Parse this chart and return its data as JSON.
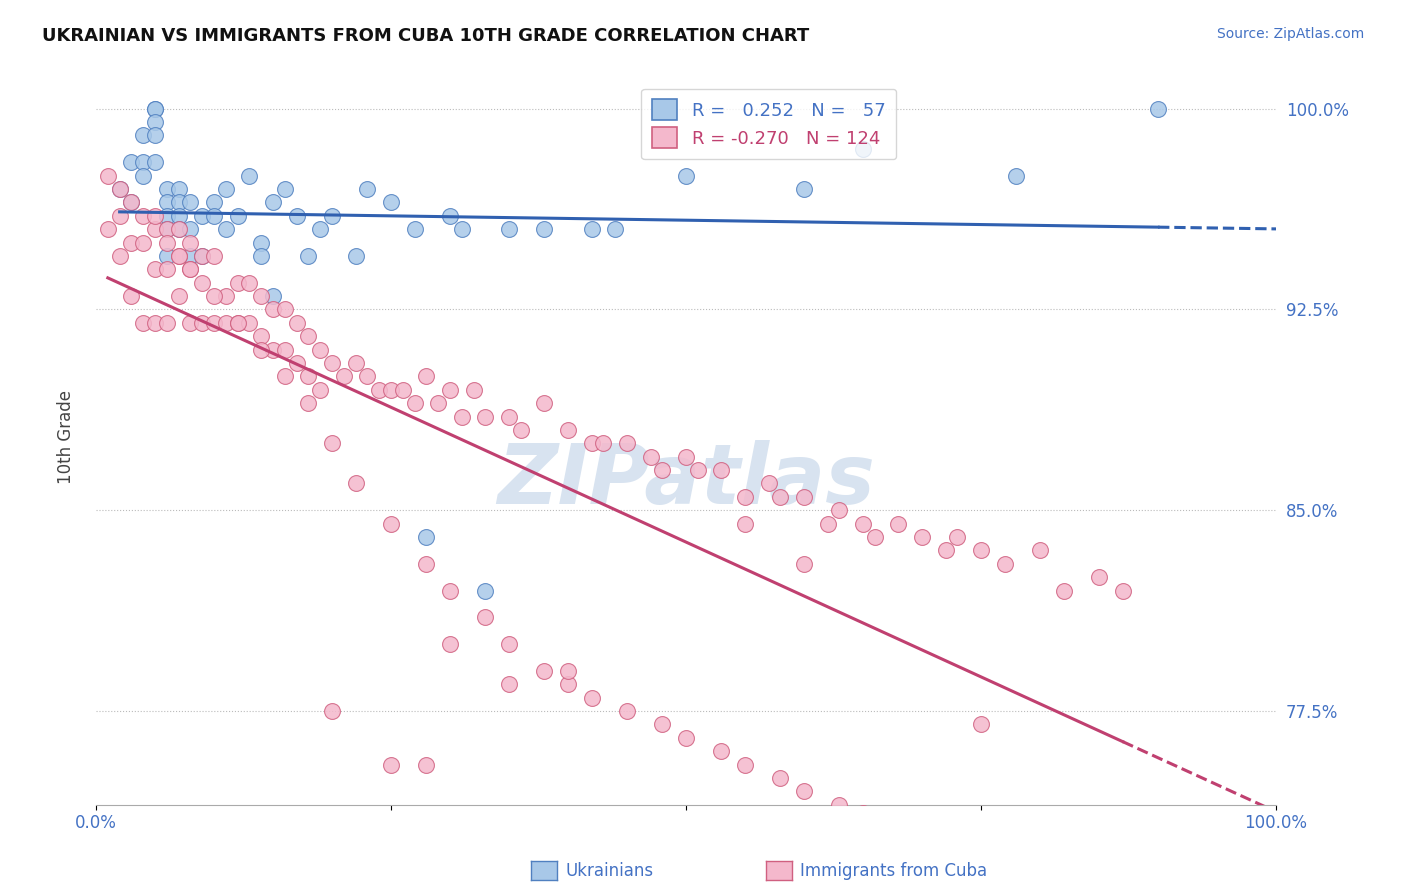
{
  "title": "UKRAINIAN VS IMMIGRANTS FROM CUBA 10TH GRADE CORRELATION CHART",
  "source": "Source: ZipAtlas.com",
  "ylabel": "10th Grade",
  "xlim": [
    0.0,
    1.0
  ],
  "ylim": [
    0.74,
    1.015
  ],
  "yticks": [
    0.775,
    0.85,
    0.925,
    1.0
  ],
  "ytick_labels": [
    "77.5%",
    "85.0%",
    "92.5%",
    "100.0%"
  ],
  "legend_blue_r": "0.252",
  "legend_blue_n": "57",
  "legend_pink_r": "-0.270",
  "legend_pink_n": "124",
  "blue_face": "#a8c8e8",
  "pink_face": "#f4b8cc",
  "blue_edge": "#5080c0",
  "pink_edge": "#d06080",
  "blue_line": "#3060b0",
  "pink_line": "#c04070",
  "watermark": "ZIPatlas",
  "blue_scatter_x": [
    0.02,
    0.03,
    0.03,
    0.04,
    0.04,
    0.04,
    0.05,
    0.05,
    0.05,
    0.05,
    0.05,
    0.06,
    0.06,
    0.06,
    0.06,
    0.06,
    0.07,
    0.07,
    0.07,
    0.07,
    0.08,
    0.08,
    0.08,
    0.09,
    0.09,
    0.1,
    0.1,
    0.11,
    0.11,
    0.12,
    0.13,
    0.14,
    0.14,
    0.15,
    0.15,
    0.16,
    0.17,
    0.18,
    0.19,
    0.2,
    0.22,
    0.23,
    0.25,
    0.27,
    0.28,
    0.3,
    0.31,
    0.33,
    0.35,
    0.38,
    0.42,
    0.44,
    0.5,
    0.6,
    0.65,
    0.78,
    0.9
  ],
  "blue_scatter_y": [
    0.97,
    0.98,
    0.965,
    0.99,
    0.98,
    0.975,
    1.0,
    1.0,
    0.995,
    0.99,
    0.98,
    0.97,
    0.965,
    0.96,
    0.955,
    0.945,
    0.97,
    0.965,
    0.96,
    0.955,
    0.965,
    0.955,
    0.945,
    0.96,
    0.945,
    0.965,
    0.96,
    0.955,
    0.97,
    0.96,
    0.975,
    0.95,
    0.945,
    0.93,
    0.965,
    0.97,
    0.96,
    0.945,
    0.955,
    0.96,
    0.945,
    0.97,
    0.965,
    0.955,
    0.84,
    0.96,
    0.955,
    0.82,
    0.955,
    0.955,
    0.955,
    0.955,
    0.975,
    0.97,
    0.985,
    0.975,
    1.0
  ],
  "pink_scatter_x": [
    0.01,
    0.01,
    0.02,
    0.02,
    0.02,
    0.03,
    0.03,
    0.03,
    0.04,
    0.04,
    0.04,
    0.05,
    0.05,
    0.05,
    0.06,
    0.06,
    0.06,
    0.07,
    0.07,
    0.07,
    0.08,
    0.08,
    0.08,
    0.09,
    0.09,
    0.1,
    0.1,
    0.11,
    0.11,
    0.12,
    0.12,
    0.13,
    0.13,
    0.14,
    0.14,
    0.15,
    0.15,
    0.16,
    0.16,
    0.17,
    0.17,
    0.18,
    0.18,
    0.19,
    0.19,
    0.2,
    0.21,
    0.22,
    0.23,
    0.24,
    0.25,
    0.26,
    0.27,
    0.28,
    0.29,
    0.3,
    0.31,
    0.32,
    0.33,
    0.35,
    0.36,
    0.38,
    0.4,
    0.42,
    0.43,
    0.45,
    0.47,
    0.48,
    0.5,
    0.51,
    0.53,
    0.55,
    0.57,
    0.58,
    0.6,
    0.62,
    0.63,
    0.65,
    0.66,
    0.68,
    0.7,
    0.72,
    0.73,
    0.75,
    0.77,
    0.8,
    0.82,
    0.85,
    0.87,
    0.05,
    0.06,
    0.07,
    0.08,
    0.09,
    0.1,
    0.12,
    0.14,
    0.16,
    0.18,
    0.2,
    0.22,
    0.25,
    0.28,
    0.3,
    0.33,
    0.35,
    0.38,
    0.4,
    0.42,
    0.45,
    0.48,
    0.5,
    0.53,
    0.55,
    0.58,
    0.6,
    0.63,
    0.65,
    0.68,
    0.3,
    0.35,
    0.4,
    0.55,
    0.6,
    0.2,
    0.25,
    0.28,
    0.75
  ],
  "pink_scatter_y": [
    0.975,
    0.955,
    0.97,
    0.96,
    0.945,
    0.965,
    0.95,
    0.93,
    0.96,
    0.95,
    0.92,
    0.955,
    0.94,
    0.92,
    0.955,
    0.94,
    0.92,
    0.955,
    0.945,
    0.93,
    0.95,
    0.94,
    0.92,
    0.945,
    0.92,
    0.945,
    0.92,
    0.93,
    0.92,
    0.935,
    0.92,
    0.935,
    0.92,
    0.93,
    0.915,
    0.925,
    0.91,
    0.925,
    0.91,
    0.92,
    0.905,
    0.915,
    0.9,
    0.91,
    0.895,
    0.905,
    0.9,
    0.905,
    0.9,
    0.895,
    0.895,
    0.895,
    0.89,
    0.9,
    0.89,
    0.895,
    0.885,
    0.895,
    0.885,
    0.885,
    0.88,
    0.89,
    0.88,
    0.875,
    0.875,
    0.875,
    0.87,
    0.865,
    0.87,
    0.865,
    0.865,
    0.855,
    0.86,
    0.855,
    0.855,
    0.845,
    0.85,
    0.845,
    0.84,
    0.845,
    0.84,
    0.835,
    0.84,
    0.835,
    0.83,
    0.835,
    0.82,
    0.825,
    0.82,
    0.96,
    0.95,
    0.945,
    0.94,
    0.935,
    0.93,
    0.92,
    0.91,
    0.9,
    0.89,
    0.875,
    0.86,
    0.845,
    0.83,
    0.82,
    0.81,
    0.8,
    0.79,
    0.785,
    0.78,
    0.775,
    0.77,
    0.765,
    0.76,
    0.755,
    0.75,
    0.745,
    0.74,
    0.737,
    0.734,
    0.8,
    0.785,
    0.79,
    0.845,
    0.83,
    0.775,
    0.755,
    0.755,
    0.77
  ]
}
